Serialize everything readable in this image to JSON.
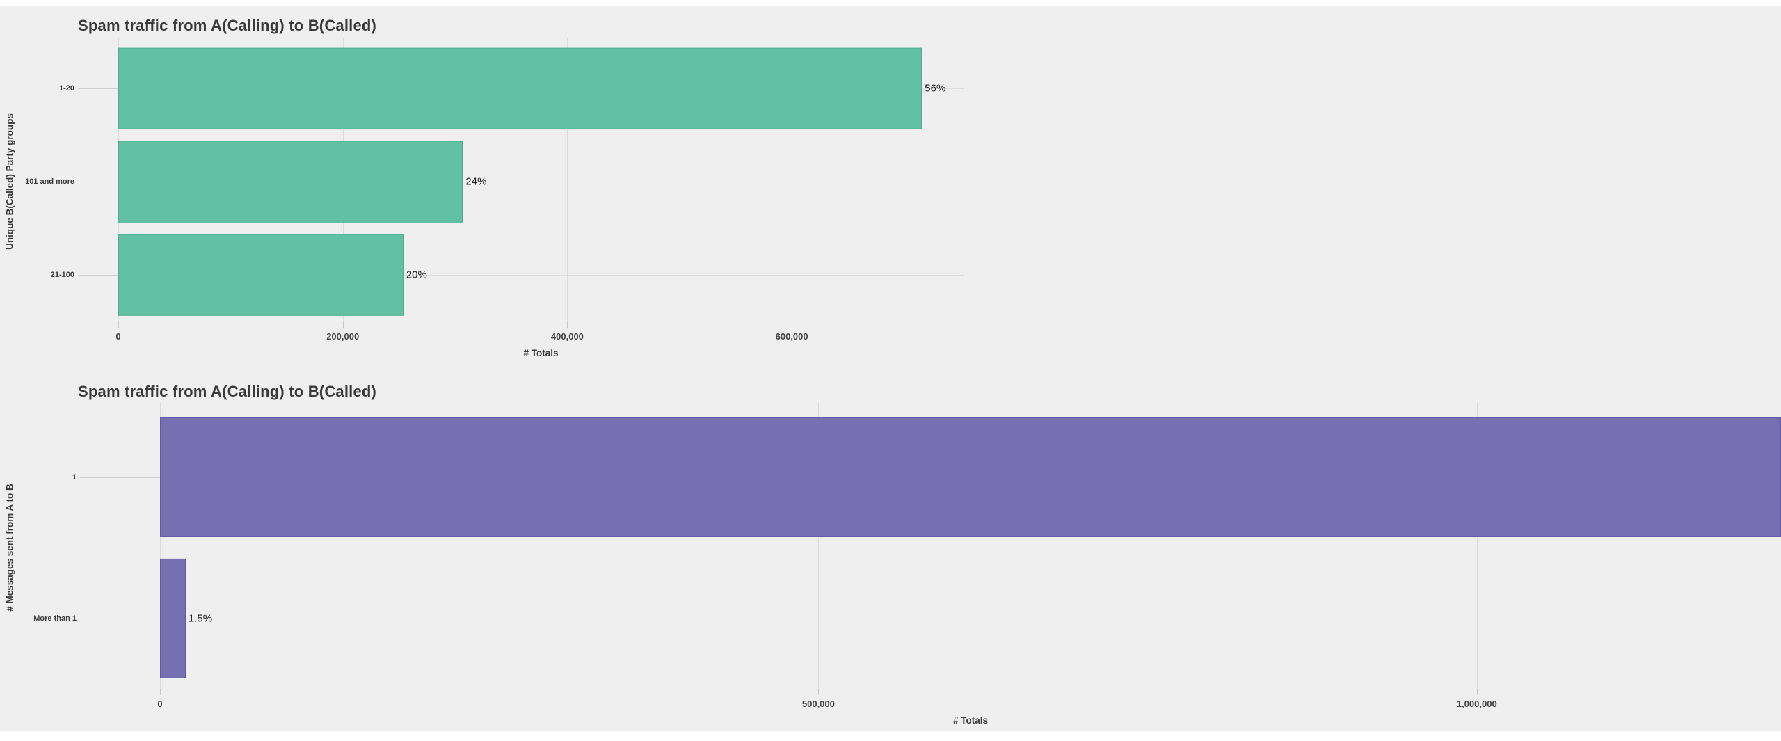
{
  "page": {
    "background_color": "#efefef",
    "description": "Two horizontal bar charts stacked vertically"
  },
  "chart_data": [
    {
      "type": "bar",
      "orientation": "horizontal",
      "title": "Spam traffic from A(Calling) to B(Called)",
      "xlabel": "# Totals",
      "ylabel": "Unique B(Called) Party groups",
      "categories": [
        "1-20",
        "101 and more",
        "21-100"
      ],
      "values": [
        716000,
        307000,
        254000
      ],
      "bar_labels": [
        "56%",
        "24%",
        "20%"
      ],
      "xlim": [
        0,
        753000
      ],
      "xticks": [
        0,
        200000,
        400000,
        600000
      ],
      "xtick_labels": [
        "0",
        "200,000",
        "400,000",
        "600,000"
      ],
      "bar_color": "#63c1a3",
      "bar_border_color": "#4fae90",
      "grid": true,
      "legend": false
    },
    {
      "type": "bar",
      "orientation": "horizontal",
      "title": "Spam traffic from A(Calling) to B(Called)",
      "xlabel": "# Totals",
      "ylabel": "# Messages sent from A to B",
      "categories": [
        "1",
        "More than 1"
      ],
      "values": [
        1281000,
        19500
      ],
      "bar_labels": [
        "",
        "1.5%"
      ],
      "bar_clipped": [
        true,
        false
      ],
      "xlim": [
        0,
        1231000
      ],
      "xticks": [
        0,
        500000,
        1000000
      ],
      "xtick_labels": [
        "0",
        "500,000",
        "1,000,000"
      ],
      "bar_color": "#766fb2",
      "bar_border_color": "#615aa2",
      "grid": true,
      "legend": false
    }
  ]
}
